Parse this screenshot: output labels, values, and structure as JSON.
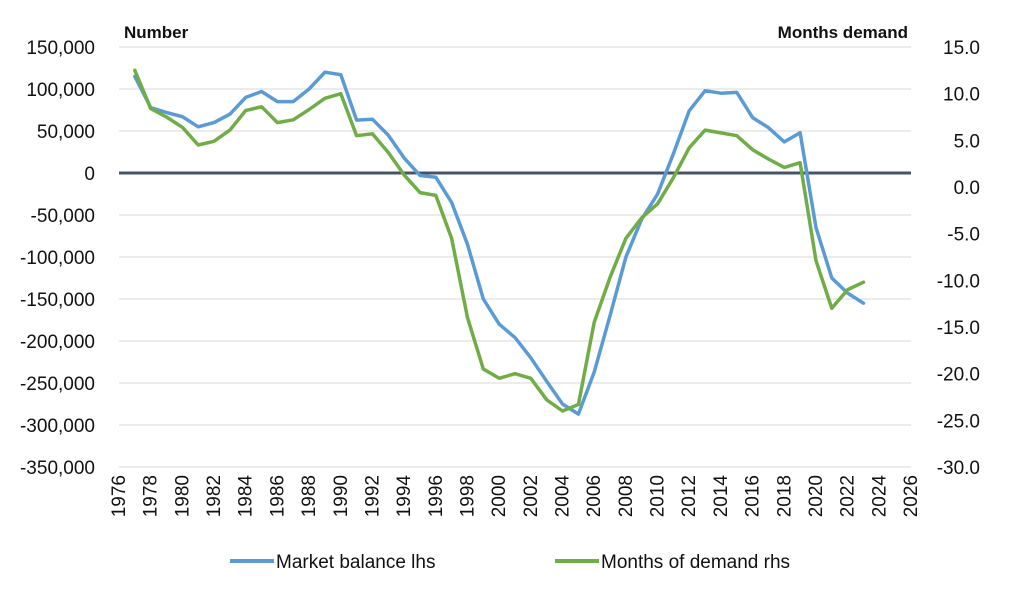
{
  "chart_data": {
    "type": "line",
    "y_left_label": "Number",
    "y_right_label": "Months demand",
    "x_range": [
      1976,
      2026
    ],
    "x_ticks": [
      "1976",
      "1978",
      "1980",
      "1982",
      "1984",
      "1986",
      "1988",
      "1990",
      "1992",
      "1994",
      "1996",
      "1998",
      "2000",
      "2002",
      "2004",
      "2006",
      "2008",
      "2010",
      "2012",
      "2014",
      "2016",
      "2018",
      "2020",
      "2022",
      "2024",
      "2026"
    ],
    "y_left_range": [
      -350000,
      150000
    ],
    "y_left_ticks": [
      "150,000",
      "100,000",
      "50,000",
      "0",
      "-50,000",
      "-100,000",
      "-150,000",
      "-200,000",
      "-250,000",
      "-300,000",
      "-350,000"
    ],
    "y_right_range": [
      -30,
      15
    ],
    "y_right_ticks": [
      "15.0",
      "10.0",
      "5.0",
      "0.0",
      "-5.0",
      "-10.0",
      "-15.0",
      "-20.0",
      "-25.0",
      "-30.0"
    ],
    "grid": "horizontal",
    "legend_position": "bottom",
    "series": [
      {
        "name": "Market balance lhs",
        "axis": "left",
        "color": "#5b9bd5",
        "x": [
          1977,
          1978,
          1979,
          1980,
          1981,
          1982,
          1983,
          1984,
          1985,
          1986,
          1987,
          1988,
          1989,
          1990,
          1991,
          1992,
          1993,
          1994,
          1995,
          1996,
          1997,
          1998,
          1999,
          2000,
          2001,
          2002,
          2003,
          2004,
          2005,
          2006,
          2007,
          2008,
          2009,
          2010,
          2011,
          2012,
          2013,
          2014,
          2015,
          2016,
          2017,
          2018,
          2019,
          2020,
          2021,
          2022,
          2023,
          2024
        ],
        "values": [
          115000,
          78000,
          72000,
          67000,
          55000,
          60000,
          70000,
          90000,
          97000,
          85000,
          85000,
          100000,
          120000,
          117000,
          63000,
          64000,
          45000,
          18000,
          -3000,
          -5000,
          -35000,
          -85000,
          -150000,
          -180000,
          -196000,
          -220000,
          -248000,
          -275000,
          -287000,
          -237000,
          -170000,
          -100000,
          -55000,
          -25000,
          23000,
          74000,
          98000,
          95000,
          96000,
          66000,
          54000,
          37000,
          48000,
          -65000,
          -125000,
          -143000,
          -155000,
          null
        ]
      },
      {
        "name": "Months of demand rhs",
        "axis": "right",
        "color": "#70ad47",
        "x": [
          1977,
          1978,
          1979,
          1980,
          1981,
          1982,
          1983,
          1984,
          1985,
          1986,
          1987,
          1988,
          1989,
          1990,
          1991,
          1992,
          1993,
          1994,
          1995,
          1996,
          1997,
          1998,
          1999,
          2000,
          2001,
          2002,
          2003,
          2004,
          2005,
          2006,
          2007,
          2008,
          2009,
          2010,
          2011,
          2012,
          2013,
          2014,
          2015,
          2016,
          2017,
          2018,
          2019,
          2020,
          2021,
          2022,
          2023,
          2024
        ],
        "values": [
          12.5,
          8.4,
          7.5,
          6.4,
          4.5,
          4.9,
          6.1,
          8.2,
          8.6,
          6.9,
          7.2,
          8.3,
          9.5,
          10.0,
          5.5,
          5.7,
          3.7,
          1.3,
          -0.6,
          -0.9,
          -5.5,
          -14.0,
          -19.5,
          -20.5,
          -20.0,
          -20.5,
          -22.8,
          -24.0,
          -23.3,
          -14.5,
          -9.7,
          -5.5,
          -3.3,
          -1.8,
          1.0,
          4.2,
          6.1,
          5.8,
          5.5,
          4.0,
          3.0,
          2.1,
          2.6,
          -7.9,
          -13.0,
          -11.0,
          -10.2,
          null
        ]
      }
    ]
  }
}
